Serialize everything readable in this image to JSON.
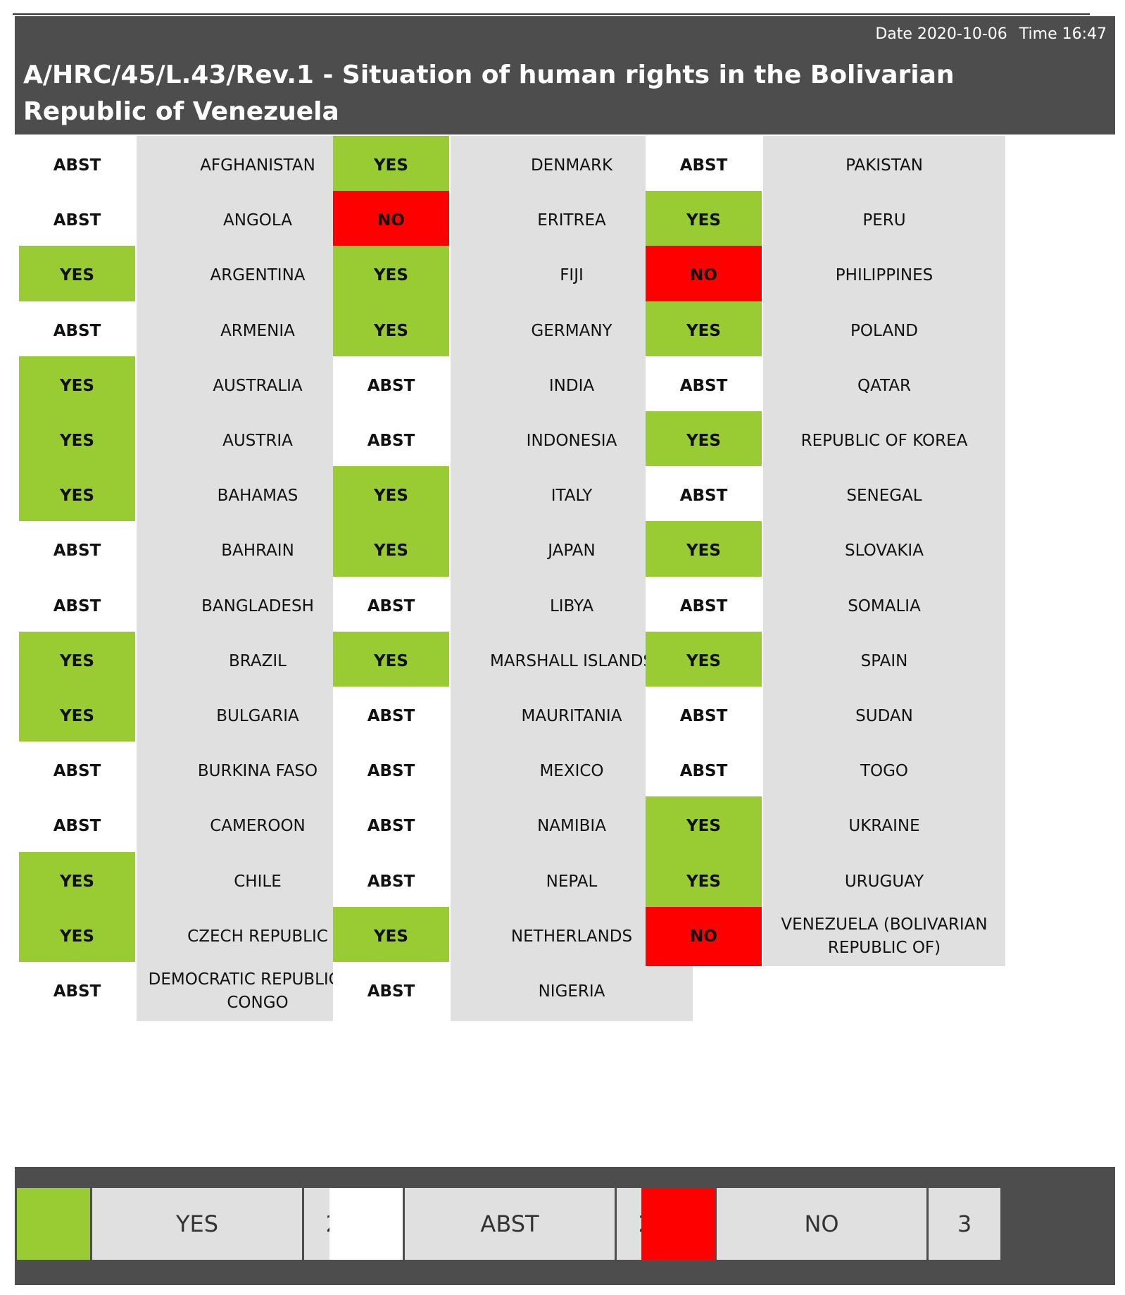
{
  "header": {
    "date": "Date 2020-10-06",
    "time": "Time 16:47",
    "title": "A/HRC/45/L.43/Rev.1 - Situation of human rights in the Bolivarian Republic of Venezuela"
  },
  "colors": {
    "yes": "#99cc33",
    "no": "#ff0000",
    "abst": "#ffffff",
    "header": "#4d4d4d",
    "cell": "#e0e0e0"
  },
  "columns": [
    [
      {
        "vote": "ABST",
        "country": "AFGHANISTAN"
      },
      {
        "vote": "ABST",
        "country": "ANGOLA"
      },
      {
        "vote": "YES",
        "country": "ARGENTINA"
      },
      {
        "vote": "ABST",
        "country": "ARMENIA"
      },
      {
        "vote": "YES",
        "country": "AUSTRALIA"
      },
      {
        "vote": "YES",
        "country": "AUSTRIA"
      },
      {
        "vote": "YES",
        "country": "BAHAMAS"
      },
      {
        "vote": "ABST",
        "country": "BAHRAIN"
      },
      {
        "vote": "ABST",
        "country": "BANGLADESH"
      },
      {
        "vote": "YES",
        "country": "BRAZIL"
      },
      {
        "vote": "YES",
        "country": "BULGARIA"
      },
      {
        "vote": "ABST",
        "country": "BURKINA FASO"
      },
      {
        "vote": "ABST",
        "country": "CAMEROON"
      },
      {
        "vote": "YES",
        "country": "CHILE"
      },
      {
        "vote": "YES",
        "country": "CZECH REPUBLIC"
      },
      {
        "vote": "ABST",
        "country": "DEMOCRATIC REPUBLIC OF CONGO"
      }
    ],
    [
      {
        "vote": "YES",
        "country": "DENMARK"
      },
      {
        "vote": "NO",
        "country": "ERITREA"
      },
      {
        "vote": "YES",
        "country": "FIJI"
      },
      {
        "vote": "YES",
        "country": "GERMANY"
      },
      {
        "vote": "ABST",
        "country": "INDIA"
      },
      {
        "vote": "ABST",
        "country": "INDONESIA"
      },
      {
        "vote": "YES",
        "country": "ITALY"
      },
      {
        "vote": "YES",
        "country": "JAPAN"
      },
      {
        "vote": "ABST",
        "country": "LIBYA"
      },
      {
        "vote": "YES",
        "country": "MARSHALL ISLANDS"
      },
      {
        "vote": "ABST",
        "country": "MAURITANIA"
      },
      {
        "vote": "ABST",
        "country": "MEXICO"
      },
      {
        "vote": "ABST",
        "country": "NAMIBIA"
      },
      {
        "vote": "ABST",
        "country": "NEPAL"
      },
      {
        "vote": "YES",
        "country": "NETHERLANDS"
      },
      {
        "vote": "ABST",
        "country": "NIGERIA"
      }
    ],
    [
      {
        "vote": "ABST",
        "country": "PAKISTAN"
      },
      {
        "vote": "YES",
        "country": "PERU"
      },
      {
        "vote": "NO",
        "country": "PHILIPPINES"
      },
      {
        "vote": "YES",
        "country": "POLAND"
      },
      {
        "vote": "ABST",
        "country": "QATAR"
      },
      {
        "vote": "YES",
        "country": "REPUBLIC OF KOREA"
      },
      {
        "vote": "ABST",
        "country": "SENEGAL"
      },
      {
        "vote": "YES",
        "country": "SLOVAKIA"
      },
      {
        "vote": "ABST",
        "country": "SOMALIA"
      },
      {
        "vote": "YES",
        "country": "SPAIN"
      },
      {
        "vote": "ABST",
        "country": "SUDAN"
      },
      {
        "vote": "ABST",
        "country": "TOGO"
      },
      {
        "vote": "YES",
        "country": "UKRAINE"
      },
      {
        "vote": "YES",
        "country": "URUGUAY"
      },
      {
        "vote": "NO",
        "country": "VENEZUELA (BOLIVARIAN REPUBLIC OF)"
      }
    ]
  ],
  "totals": [
    {
      "label": "YES",
      "count": "22",
      "kind": "yes"
    },
    {
      "label": "ABST",
      "count": "22",
      "kind": "abst"
    },
    {
      "label": "NO",
      "count": "3",
      "kind": "no"
    }
  ]
}
